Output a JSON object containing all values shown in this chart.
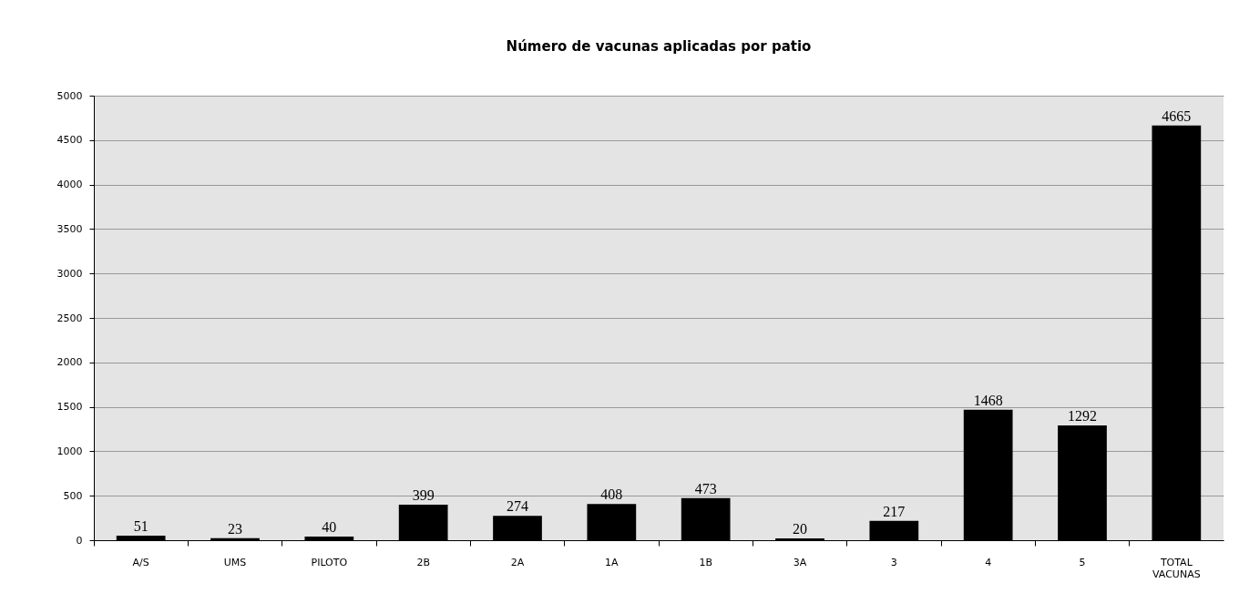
{
  "chart_data": {
    "type": "bar",
    "title": "Número de vacunas aplicadas por patio",
    "categories": [
      "A/S",
      "UMS",
      "PILOTO",
      "2B",
      "2A",
      "1A",
      "1B",
      "3A",
      "3",
      "4",
      "5",
      "TOTAL VACUNAS"
    ],
    "values": [
      51,
      23,
      40,
      399,
      274,
      408,
      473,
      20,
      217,
      1468,
      1292,
      4665
    ],
    "color": "#000000",
    "ylim": [
      0,
      5000
    ],
    "yticks": [
      0,
      500,
      1000,
      1500,
      2000,
      2500,
      3000,
      3500,
      4000,
      4500,
      5000
    ],
    "grid": "y",
    "data_labels": true
  }
}
